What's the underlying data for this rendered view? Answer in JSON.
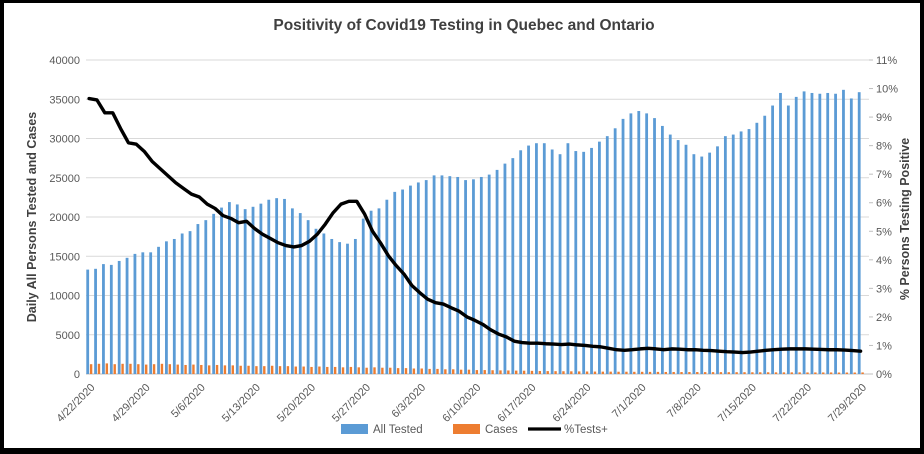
{
  "title": "Positivity of Covid19 Testing in Quebec and Ontario",
  "left_axis": {
    "title": "Daily All Persons Tested and Cases",
    "min": 0,
    "max": 40000,
    "tick_interval": 5000,
    "tick_labels": [
      "0",
      "5000",
      "10000",
      "15000",
      "20000",
      "25000",
      "30000",
      "35000",
      "40000"
    ]
  },
  "right_axis": {
    "title": "% Persons Testing Positive",
    "min": 0,
    "max": 11,
    "tick_interval": 1,
    "tick_labels": [
      "0%",
      "1%",
      "2%",
      "3%",
      "4%",
      "5%",
      "6%",
      "7%",
      "8%",
      "9%",
      "10%",
      "11%"
    ]
  },
  "x_axis": {
    "tick_labels": [
      "4/22/2020",
      "4/29/2020",
      "5/6/2020",
      "5/13/2020",
      "5/20/2020",
      "5/27/2020",
      "6/3/2020",
      "6/10/2020",
      "6/17/2020",
      "6/24/2020",
      "7/1/2020",
      "7/8/2020",
      "7/15/2020",
      "7/22/2020",
      "7/29/2020"
    ]
  },
  "legend": {
    "all_tested": "All Tested",
    "cases": "Cases",
    "pct_tests": "%Tests+",
    "position": "bottom"
  },
  "colors": {
    "all_tested": "#5B9BD5",
    "cases": "#ED7D31",
    "pct_line": "#000000",
    "gridline": "#D9D9D9",
    "axis_line": "#BFBFBF",
    "tick_text": "#595959",
    "title_text": "#404040",
    "frame": "#000000",
    "background": "#FFFFFF"
  },
  "chart_data": {
    "type": "bar+line",
    "title": "Positivity of Covid19 Testing in Quebec and Ontario",
    "xlabel": "",
    "ylabel_left": "Daily All Persons Tested and Cases",
    "ylabel_right": "% Persons Testing Positive",
    "left_ylim": [
      0,
      40000
    ],
    "right_ylim": [
      0,
      11
    ],
    "grid": true,
    "legend_position": "bottom",
    "categories": [
      "4/22/2020",
      "4/23/2020",
      "4/24/2020",
      "4/25/2020",
      "4/26/2020",
      "4/27/2020",
      "4/28/2020",
      "4/29/2020",
      "4/30/2020",
      "5/1/2020",
      "5/2/2020",
      "5/3/2020",
      "5/4/2020",
      "5/5/2020",
      "5/6/2020",
      "5/7/2020",
      "5/8/2020",
      "5/9/2020",
      "5/10/2020",
      "5/11/2020",
      "5/12/2020",
      "5/13/2020",
      "5/14/2020",
      "5/15/2020",
      "5/16/2020",
      "5/17/2020",
      "5/18/2020",
      "5/19/2020",
      "5/20/2020",
      "5/21/2020",
      "5/22/2020",
      "5/23/2020",
      "5/24/2020",
      "5/25/2020",
      "5/26/2020",
      "5/27/2020",
      "5/28/2020",
      "5/29/2020",
      "5/30/2020",
      "5/31/2020",
      "6/1/2020",
      "6/2/2020",
      "6/3/2020",
      "6/4/2020",
      "6/5/2020",
      "6/6/2020",
      "6/7/2020",
      "6/8/2020",
      "6/9/2020",
      "6/10/2020",
      "6/11/2020",
      "6/12/2020",
      "6/13/2020",
      "6/14/2020",
      "6/15/2020",
      "6/16/2020",
      "6/17/2020",
      "6/18/2020",
      "6/19/2020",
      "6/20/2020",
      "6/21/2020",
      "6/22/2020",
      "6/23/2020",
      "6/24/2020",
      "6/25/2020",
      "6/26/2020",
      "6/27/2020",
      "6/28/2020",
      "6/29/2020",
      "6/30/2020",
      "7/1/2020",
      "7/2/2020",
      "7/3/2020",
      "7/4/2020",
      "7/5/2020",
      "7/6/2020",
      "7/7/2020",
      "7/8/2020",
      "7/9/2020",
      "7/10/2020",
      "7/11/2020",
      "7/12/2020",
      "7/13/2020",
      "7/14/2020",
      "7/15/2020",
      "7/16/2020",
      "7/17/2020",
      "7/18/2020",
      "7/19/2020",
      "7/20/2020",
      "7/21/2020",
      "7/22/2020",
      "7/23/2020",
      "7/24/2020",
      "7/25/2020",
      "7/26/2020",
      "7/27/2020",
      "7/28/2020",
      "7/29/2020"
    ],
    "series": [
      {
        "name": "All Tested",
        "type": "bar",
        "axis": "left",
        "color": "#5B9BD5",
        "values": [
          13300,
          13400,
          14000,
          13900,
          14400,
          14800,
          15300,
          15500,
          15500,
          16200,
          16900,
          17200,
          17900,
          18200,
          19100,
          19600,
          20400,
          21200,
          21900,
          21600,
          21000,
          21300,
          21700,
          22200,
          22400,
          22300,
          21100,
          20500,
          19600,
          18500,
          17900,
          17200,
          16800,
          16600,
          17200,
          19800,
          20800,
          21100,
          22200,
          23200,
          23500,
          24000,
          24400,
          24700,
          25300,
          25300,
          25200,
          25100,
          24700,
          24800,
          25100,
          25400,
          26000,
          26800,
          27500,
          28500,
          29100,
          29400,
          29400,
          28600,
          28000,
          29400,
          28400,
          28300,
          28800,
          29600,
          30300,
          31300,
          32500,
          33200,
          33500,
          33200,
          32600,
          31600,
          30500,
          29800,
          29200,
          28000,
          27700,
          28200,
          29000,
          30300,
          30500,
          30900,
          31200,
          32000,
          32900,
          34200,
          35800,
          34200,
          35300,
          36000,
          35800,
          35700,
          35800,
          35700,
          36200,
          35100,
          35900
        ]
      },
      {
        "name": "Cases",
        "type": "bar",
        "axis": "left",
        "color": "#ED7D31",
        "values": [
          1250,
          1300,
          1350,
          1250,
          1300,
          1300,
          1250,
          1200,
          1250,
          1300,
          1250,
          1200,
          1150,
          1200,
          1150,
          1100,
          1150,
          1100,
          1100,
          1050,
          1050,
          1000,
          1000,
          1050,
          1000,
          1000,
          950,
          950,
          900,
          950,
          900,
          900,
          850,
          900,
          850,
          800,
          850,
          800,
          800,
          750,
          750,
          700,
          700,
          650,
          650,
          600,
          600,
          550,
          550,
          500,
          500,
          480,
          460,
          450,
          430,
          420,
          400,
          380,
          370,
          360,
          350,
          340,
          330,
          320,
          310,
          300,
          300,
          290,
          290,
          280,
          280,
          270,
          270,
          260,
          260,
          250,
          250,
          250,
          240,
          240,
          240,
          230,
          230,
          230,
          220,
          220,
          220,
          210,
          210,
          210,
          210,
          200,
          200,
          200,
          200,
          190,
          190,
          190,
          200
        ]
      },
      {
        "name": "%Tests+",
        "type": "line",
        "axis": "right",
        "color": "#000000",
        "values": [
          9.65,
          9.6,
          9.15,
          9.15,
          8.6,
          8.1,
          8.05,
          7.8,
          7.45,
          7.2,
          6.95,
          6.7,
          6.5,
          6.3,
          6.2,
          5.95,
          5.8,
          5.55,
          5.45,
          5.3,
          5.35,
          5.1,
          4.9,
          4.75,
          4.6,
          4.5,
          4.45,
          4.5,
          4.65,
          4.9,
          5.25,
          5.65,
          5.95,
          6.05,
          6.05,
          5.6,
          5.0,
          4.6,
          4.15,
          3.8,
          3.5,
          3.1,
          2.85,
          2.62,
          2.5,
          2.45,
          2.32,
          2.2,
          2.0,
          1.88,
          1.74,
          1.55,
          1.4,
          1.3,
          1.15,
          1.1,
          1.08,
          1.08,
          1.06,
          1.05,
          1.03,
          1.05,
          1.02,
          1.0,
          0.97,
          0.95,
          0.9,
          0.85,
          0.83,
          0.85,
          0.88,
          0.9,
          0.88,
          0.85,
          0.88,
          0.87,
          0.85,
          0.85,
          0.83,
          0.82,
          0.8,
          0.78,
          0.77,
          0.75,
          0.77,
          0.8,
          0.83,
          0.85,
          0.87,
          0.88,
          0.88,
          0.88,
          0.87,
          0.86,
          0.85,
          0.85,
          0.84,
          0.82,
          0.8
        ]
      }
    ]
  }
}
